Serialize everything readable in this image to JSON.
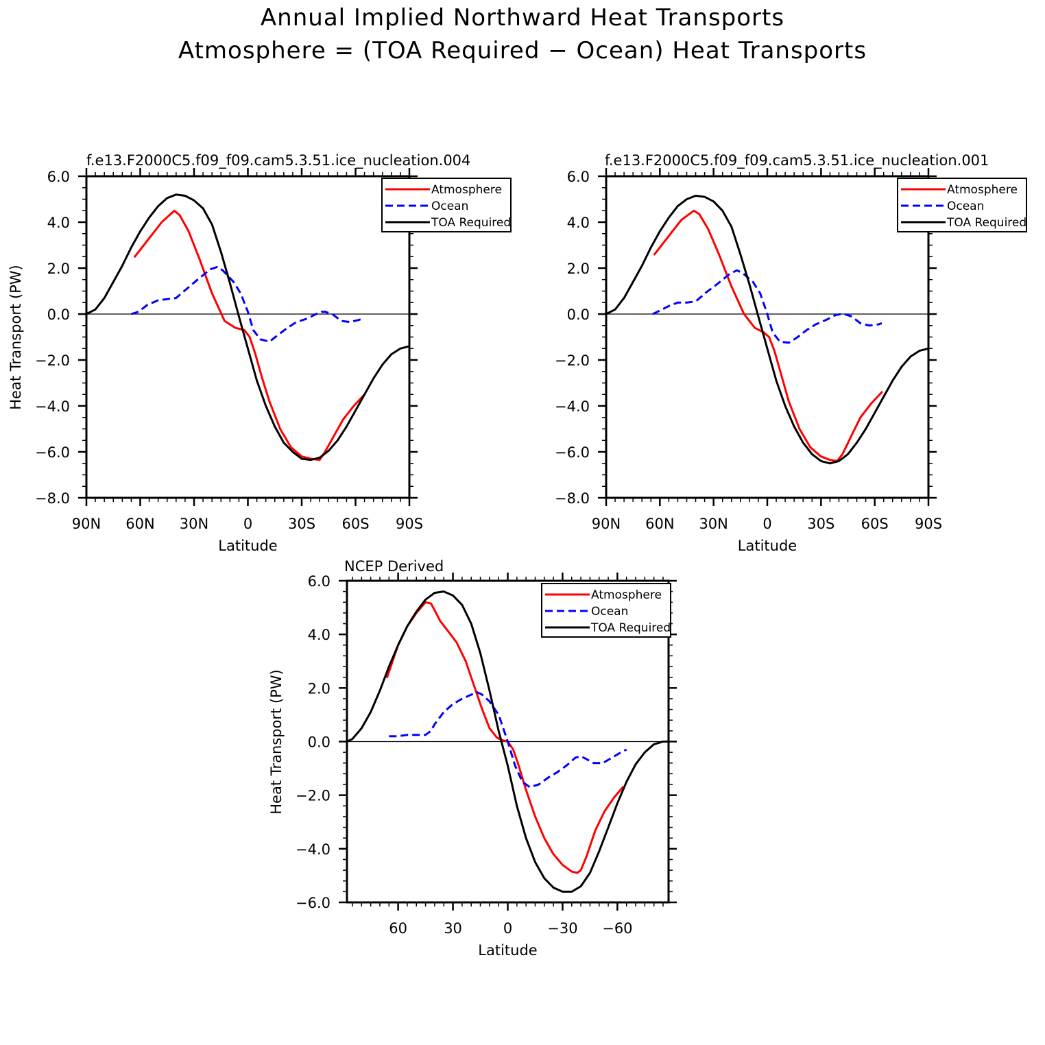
{
  "figure": {
    "title_line1": "Annual Implied Northward Heat Transports",
    "title_line2": "Atmosphere = (TOA Required − Ocean) Heat Transports"
  },
  "colors": {
    "atmosphere": "#ff0000",
    "ocean": "#0000ff",
    "toa": "#000000"
  },
  "chart_data": [
    {
      "type": "line",
      "title": "f.e13.F2000C5.f09_f09.cam5.3.51.ice_nucleation.004",
      "xlabel": "Latitude",
      "ylabel": "Heat Transport (PW)",
      "xlim": [
        90,
        -90
      ],
      "ylim": [
        -8,
        6
      ],
      "xticks": [
        90,
        60,
        30,
        0,
        -30,
        -60,
        -90
      ],
      "xtick_labels": [
        "90N",
        "60N",
        "30N",
        "0",
        "30S",
        "60S",
        "90S"
      ],
      "yticks": [
        -8,
        -6,
        -4,
        -2,
        0,
        2,
        4,
        6
      ],
      "ytick_labels": [
        "−8.0",
        "−6.0",
        "−4.0",
        "−2.0",
        "0.0",
        "2.0",
        "4.0",
        "6.0"
      ],
      "legend": [
        "Atmosphere",
        "Ocean",
        "TOA Required"
      ],
      "legend_position": "top-right",
      "series": [
        {
          "name": "Atmosphere",
          "x": [
            63,
            55,
            48,
            41,
            38,
            33,
            27,
            20,
            13,
            7,
            2,
            -1,
            -4,
            -8,
            -12,
            -18,
            -24,
            -30,
            -35,
            -40,
            -43,
            -48,
            -53,
            -59,
            -65
          ],
          "y": [
            2.5,
            3.3,
            4.0,
            4.5,
            4.3,
            3.6,
            2.4,
            0.9,
            -0.3,
            -0.6,
            -0.7,
            -1.0,
            -1.7,
            -2.8,
            -3.8,
            -5.0,
            -5.8,
            -6.2,
            -6.3,
            -6.35,
            -6.0,
            -5.3,
            -4.6,
            -4.0,
            -3.5
          ],
          "style": "solid"
        },
        {
          "name": "Ocean",
          "x": [
            65,
            61,
            56,
            50,
            45,
            40,
            34,
            28,
            21,
            17,
            14,
            8,
            4,
            0,
            -3,
            -7,
            -12,
            -17,
            -22,
            -27,
            -33,
            -38,
            -41,
            -43,
            -47,
            -52,
            -57,
            -62,
            -64
          ],
          "y": [
            0.0,
            0.1,
            0.4,
            0.6,
            0.65,
            0.7,
            1.1,
            1.5,
            1.95,
            2.05,
            1.9,
            1.4,
            0.9,
            0.1,
            -0.7,
            -1.1,
            -1.2,
            -0.9,
            -0.6,
            -0.35,
            -0.2,
            0.0,
            0.1,
            0.1,
            0.0,
            -0.3,
            -0.35,
            -0.25,
            -0.2
          ],
          "style": "dashed"
        },
        {
          "name": "TOA Required",
          "x": [
            90,
            85,
            80,
            75,
            70,
            65,
            60,
            55,
            50,
            45,
            40,
            35,
            30,
            25,
            20,
            15,
            10,
            5,
            0,
            -5,
            -10,
            -15,
            -20,
            -25,
            -30,
            -35,
            -40,
            -45,
            -50,
            -55,
            -60,
            -65,
            -70,
            -75,
            -80,
            -85,
            -90
          ],
          "y": [
            0.0,
            0.2,
            0.7,
            1.4,
            2.1,
            2.9,
            3.6,
            4.2,
            4.7,
            5.05,
            5.2,
            5.15,
            4.95,
            4.6,
            3.9,
            2.7,
            1.35,
            -0.1,
            -1.5,
            -2.9,
            -4.0,
            -4.9,
            -5.6,
            -6.0,
            -6.3,
            -6.35,
            -6.25,
            -5.95,
            -5.5,
            -4.9,
            -4.2,
            -3.5,
            -2.8,
            -2.2,
            -1.75,
            -1.5,
            -1.4
          ],
          "style": "solid"
        }
      ]
    },
    {
      "type": "line",
      "title": "f.e13.F2000C5.f09_f09.cam5.3.51.ice_nucleation.001",
      "xlabel": "Latitude",
      "ylabel": "",
      "xlim": [
        90,
        -90
      ],
      "ylim": [
        -8,
        6
      ],
      "xticks": [
        90,
        60,
        30,
        0,
        -30,
        -60,
        -90
      ],
      "xtick_labels": [
        "90N",
        "60N",
        "30N",
        "0",
        "30S",
        "60S",
        "90S"
      ],
      "yticks": [
        -8,
        -6,
        -4,
        -2,
        0,
        2,
        4,
        6
      ],
      "ytick_labels": [
        "−8.0",
        "−6.0",
        "−4.0",
        "−2.0",
        "0.0",
        "2.0",
        "4.0",
        "6.0"
      ],
      "legend": [
        "Atmosphere",
        "Ocean",
        "TOA Required"
      ],
      "legend_position": "top-right",
      "series": [
        {
          "name": "Atmosphere",
          "x": [
            63,
            55,
            48,
            41,
            38,
            33,
            27,
            20,
            13,
            7,
            2,
            -1,
            -4,
            -8,
            -12,
            -18,
            -24,
            -30,
            -35,
            -39,
            -42,
            -47,
            -52,
            -58,
            -64
          ],
          "y": [
            2.6,
            3.4,
            4.1,
            4.5,
            4.35,
            3.7,
            2.6,
            1.2,
            0.0,
            -0.6,
            -0.8,
            -1.0,
            -1.6,
            -2.7,
            -3.8,
            -5.0,
            -5.8,
            -6.2,
            -6.35,
            -6.4,
            -6.1,
            -5.3,
            -4.5,
            -3.9,
            -3.4
          ],
          "style": "solid"
        },
        {
          "name": "Ocean",
          "x": [
            64,
            60,
            55,
            50,
            45,
            40,
            34,
            28,
            21,
            17,
            14,
            8,
            4,
            0,
            -3,
            -7,
            -12,
            -17,
            -22,
            -27,
            -33,
            -38,
            -41,
            -43,
            -47,
            -52,
            -57,
            -62,
            -64
          ],
          "y": [
            0.0,
            0.15,
            0.35,
            0.5,
            0.5,
            0.55,
            0.95,
            1.3,
            1.75,
            1.9,
            1.8,
            1.4,
            0.9,
            0.0,
            -0.8,
            -1.2,
            -1.25,
            -1.0,
            -0.7,
            -0.45,
            -0.25,
            -0.05,
            0.0,
            0.0,
            -0.1,
            -0.4,
            -0.5,
            -0.45,
            -0.4
          ],
          "style": "dashed"
        },
        {
          "name": "TOA Required",
          "x": [
            90,
            85,
            80,
            75,
            70,
            65,
            60,
            55,
            50,
            45,
            40,
            35,
            30,
            25,
            20,
            15,
            10,
            5,
            0,
            -5,
            -10,
            -15,
            -20,
            -25,
            -30,
            -35,
            -40,
            -45,
            -50,
            -55,
            -60,
            -65,
            -70,
            -75,
            -80,
            -85,
            -90
          ],
          "y": [
            0.0,
            0.2,
            0.7,
            1.4,
            2.1,
            2.9,
            3.6,
            4.2,
            4.7,
            5.0,
            5.15,
            5.1,
            4.9,
            4.5,
            3.8,
            2.6,
            1.3,
            -0.1,
            -1.5,
            -2.9,
            -4.0,
            -4.9,
            -5.6,
            -6.1,
            -6.4,
            -6.5,
            -6.4,
            -6.1,
            -5.6,
            -5.0,
            -4.3,
            -3.6,
            -2.9,
            -2.3,
            -1.85,
            -1.6,
            -1.5
          ],
          "style": "solid"
        }
      ]
    },
    {
      "type": "line",
      "title": "NCEP Derived",
      "xlabel": "Latitude",
      "ylabel": "Heat Transport (PW)",
      "xlim": [
        88,
        -88
      ],
      "ylim": [
        -6,
        6
      ],
      "xticks": [
        60,
        30,
        0,
        -30,
        -60
      ],
      "xtick_labels": [
        "60",
        "30",
        "0",
        "−30",
        "−60"
      ],
      "yticks": [
        -6,
        -4,
        -2,
        0,
        2,
        4,
        6
      ],
      "ytick_labels": [
        "−6.0",
        "−4.0",
        "−2.0",
        "0.0",
        "2.0",
        "4.0",
        "6.0"
      ],
      "legend": [
        "Atmosphere",
        "Ocean",
        "TOA Required"
      ],
      "legend_position": "top-right",
      "series": [
        {
          "name": "Atmosphere",
          "x": [
            66,
            60,
            55,
            50,
            45,
            42,
            40,
            37,
            33,
            28,
            23,
            18,
            14,
            10,
            6,
            3,
            0,
            -3,
            -6,
            -10,
            -15,
            -20,
            -25,
            -30,
            -35,
            -38,
            -40,
            -43,
            -48,
            -53,
            -58,
            -63
          ],
          "y": [
            2.4,
            3.6,
            4.3,
            4.8,
            5.2,
            5.15,
            4.9,
            4.5,
            4.15,
            3.7,
            3.0,
            2.0,
            1.2,
            0.5,
            0.15,
            0.05,
            0.0,
            -0.3,
            -0.9,
            -1.8,
            -2.8,
            -3.6,
            -4.2,
            -4.6,
            -4.85,
            -4.9,
            -4.8,
            -4.3,
            -3.3,
            -2.6,
            -2.1,
            -1.7
          ],
          "style": "solid"
        },
        {
          "name": "Ocean",
          "x": [
            65,
            60,
            55,
            50,
            45,
            42,
            40,
            35,
            30,
            25,
            20,
            17,
            14,
            10,
            5,
            0,
            -4,
            -8,
            -12,
            -17,
            -22,
            -27,
            -32,
            -37,
            -40,
            -43,
            -47,
            -52,
            -57,
            -62,
            -65
          ],
          "y": [
            0.2,
            0.2,
            0.25,
            0.25,
            0.25,
            0.4,
            0.65,
            1.1,
            1.4,
            1.6,
            1.75,
            1.85,
            1.75,
            1.5,
            1.0,
            0.0,
            -0.9,
            -1.5,
            -1.7,
            -1.6,
            -1.35,
            -1.15,
            -0.9,
            -0.6,
            -0.55,
            -0.65,
            -0.8,
            -0.8,
            -0.6,
            -0.4,
            -0.3
          ],
          "style": "dashed"
        },
        {
          "name": "TOA Required",
          "x": [
            88,
            85,
            80,
            75,
            70,
            65,
            60,
            55,
            50,
            45,
            40,
            35,
            30,
            25,
            20,
            15,
            10,
            5,
            0,
            -5,
            -10,
            -15,
            -20,
            -25,
            -30,
            -35,
            -40,
            -45,
            -50,
            -55,
            -60,
            -65,
            -70,
            -75,
            -80,
            -85,
            -88
          ],
          "y": [
            0.0,
            0.1,
            0.5,
            1.1,
            1.9,
            2.8,
            3.6,
            4.3,
            4.85,
            5.3,
            5.55,
            5.6,
            5.45,
            5.1,
            4.4,
            3.3,
            1.9,
            0.4,
            -0.9,
            -2.4,
            -3.6,
            -4.5,
            -5.1,
            -5.45,
            -5.6,
            -5.6,
            -5.4,
            -4.9,
            -4.1,
            -3.2,
            -2.3,
            -1.5,
            -0.85,
            -0.4,
            -0.1,
            0.0,
            0.0
          ],
          "style": "solid"
        }
      ]
    }
  ]
}
